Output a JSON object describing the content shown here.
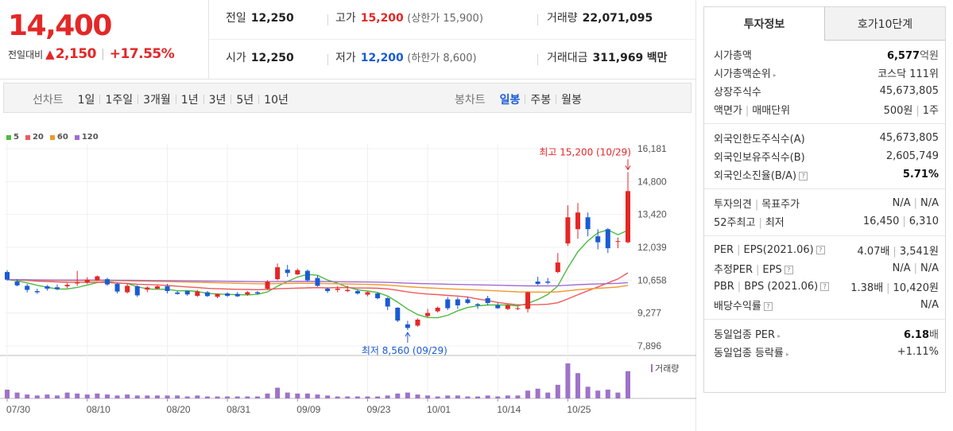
{
  "header": {
    "current_price": "14,400",
    "change_label": "전일대비",
    "change_amount": "2,150",
    "change_percent": "+17.55%",
    "prev": {
      "label": "전일",
      "value": "12,250"
    },
    "high": {
      "label": "고가",
      "value": "15,200",
      "limit": "(상한가 15,900)"
    },
    "volume": {
      "label": "거래량",
      "value": "22,071,095"
    },
    "open": {
      "label": "시가",
      "value": "12,250"
    },
    "low": {
      "label": "저가",
      "value": "12,200",
      "limit": "(하한가 8,600)"
    },
    "amount": {
      "label": "거래대금",
      "value": "311,969",
      "unit": "백만"
    }
  },
  "toolbar": {
    "line_label": "선차트",
    "periods": [
      "1일",
      "1주일",
      "3개월",
      "1년",
      "3년",
      "5년",
      "10년"
    ],
    "candle_label": "봉차트",
    "candle_types": [
      "일봉",
      "주봉",
      "월봉"
    ],
    "active_candle": "일봉"
  },
  "colors": {
    "up": "#e42727",
    "down": "#1a5bd4",
    "ma5": "#4cbb3f",
    "ma20": "#ee5a5a",
    "ma60": "#f0982c",
    "ma120": "#a26bd2"
  },
  "chart_data": {
    "type": "candlestick",
    "legend": [
      {
        "name": "5",
        "color": "#4cbb3f"
      },
      {
        "name": "20",
        "color": "#ee5a5a"
      },
      {
        "name": "60",
        "color": "#f0982c"
      },
      {
        "name": "120",
        "color": "#a26bd2"
      }
    ],
    "y_ticks": [
      "16,181",
      "14,800",
      "13,420",
      "12,039",
      "10,658",
      "9,277",
      "7,896"
    ],
    "ylim": [
      7896,
      16181
    ],
    "x_ticks": [
      {
        "label": "07/30",
        "index": 0
      },
      {
        "label": "08/10",
        "index": 8
      },
      {
        "label": "08/20",
        "index": 16
      },
      {
        "label": "08/31",
        "index": 22
      },
      {
        "label": "09/09",
        "index": 29
      },
      {
        "label": "09/23",
        "index": 36
      },
      {
        "label": "10/01",
        "index": 42
      },
      {
        "label": "10/14",
        "index": 49
      },
      {
        "label": "10/25",
        "index": 56
      }
    ],
    "max_annotation": "최고 15,200 (10/29)",
    "min_annotation": "최저 8,560 (09/29)",
    "volume_label": "거래량",
    "candles": [
      {
        "o": 11000,
        "h": 11080,
        "l": 10640,
        "c": 10680,
        "v": 9
      },
      {
        "o": 10600,
        "h": 10700,
        "l": 10400,
        "c": 10440,
        "v": 6
      },
      {
        "o": 10420,
        "h": 10500,
        "l": 10140,
        "c": 10250,
        "v": 4
      },
      {
        "o": 10200,
        "h": 10300,
        "l": 10080,
        "c": 10150,
        "v": 3
      },
      {
        "o": 10400,
        "h": 10460,
        "l": 10220,
        "c": 10300,
        "v": 4
      },
      {
        "o": 10360,
        "h": 10480,
        "l": 10240,
        "c": 10280,
        "v": 3
      },
      {
        "o": 10400,
        "h": 10540,
        "l": 10320,
        "c": 10460,
        "v": 6
      },
      {
        "o": 10520,
        "h": 11050,
        "l": 10420,
        "c": 10560,
        "v": 5
      },
      {
        "o": 10560,
        "h": 10780,
        "l": 10500,
        "c": 10680,
        "v": 4
      },
      {
        "o": 10650,
        "h": 10850,
        "l": 10620,
        "c": 10820,
        "v": 5
      },
      {
        "o": 10700,
        "h": 10760,
        "l": 10420,
        "c": 10480,
        "v": 4
      },
      {
        "o": 10500,
        "h": 10560,
        "l": 10100,
        "c": 10180,
        "v": 3
      },
      {
        "o": 10150,
        "h": 10500,
        "l": 10100,
        "c": 10420,
        "v": 4
      },
      {
        "o": 10400,
        "h": 10450,
        "l": 9950,
        "c": 10020,
        "v": 3
      },
      {
        "o": 10260,
        "h": 10400,
        "l": 10150,
        "c": 10350,
        "v": 3
      },
      {
        "o": 10300,
        "h": 10450,
        "l": 10280,
        "c": 10400,
        "v": 3
      },
      {
        "o": 10400,
        "h": 10500,
        "l": 10100,
        "c": 10200,
        "v": 3
      },
      {
        "o": 10140,
        "h": 10200,
        "l": 10050,
        "c": 10080,
        "v": 3
      },
      {
        "o": 10200,
        "h": 10220,
        "l": 10000,
        "c": 10060,
        "v": 2
      },
      {
        "o": 10000,
        "h": 10250,
        "l": 9950,
        "c": 10180,
        "v": 3
      },
      {
        "o": 10150,
        "h": 10200,
        "l": 9950,
        "c": 9990,
        "v": 2
      },
      {
        "o": 9960,
        "h": 10100,
        "l": 9900,
        "c": 10080,
        "v": 2
      },
      {
        "o": 10100,
        "h": 10150,
        "l": 9950,
        "c": 10000,
        "v": 2
      },
      {
        "o": 10080,
        "h": 10160,
        "l": 9950,
        "c": 9980,
        "v": 2
      },
      {
        "o": 10060,
        "h": 10200,
        "l": 10000,
        "c": 10150,
        "v": 2
      },
      {
        "o": 10150,
        "h": 10200,
        "l": 10060,
        "c": 10100,
        "v": 2
      },
      {
        "o": 10300,
        "h": 10660,
        "l": 10250,
        "c": 10600,
        "v": 5
      },
      {
        "o": 10700,
        "h": 11360,
        "l": 10650,
        "c": 11200,
        "v": 11
      },
      {
        "o": 11100,
        "h": 11300,
        "l": 10800,
        "c": 10960,
        "v": 6
      },
      {
        "o": 10900,
        "h": 11150,
        "l": 10880,
        "c": 11080,
        "v": 5
      },
      {
        "o": 11050,
        "h": 11110,
        "l": 10600,
        "c": 10650,
        "v": 5
      },
      {
        "o": 10750,
        "h": 10850,
        "l": 10380,
        "c": 10420,
        "v": 4
      },
      {
        "o": 10300,
        "h": 10350,
        "l": 10120,
        "c": 10200,
        "v": 3
      },
      {
        "o": 10250,
        "h": 10400,
        "l": 10150,
        "c": 10300,
        "v": 2
      },
      {
        "o": 10200,
        "h": 10420,
        "l": 10150,
        "c": 10250,
        "v": 2
      },
      {
        "o": 10200,
        "h": 10280,
        "l": 10050,
        "c": 10100,
        "v": 2
      },
      {
        "o": 10050,
        "h": 10180,
        "l": 9980,
        "c": 10150,
        "v": 2
      },
      {
        "o": 10100,
        "h": 10150,
        "l": 9850,
        "c": 9900,
        "v": 2
      },
      {
        "o": 9900,
        "h": 9950,
        "l": 9400,
        "c": 9550,
        "v": 3
      },
      {
        "o": 9500,
        "h": 9520,
        "l": 8900,
        "c": 8960,
        "v": 5
      },
      {
        "o": 8800,
        "h": 8950,
        "l": 8560,
        "c": 8650,
        "v": 6
      },
      {
        "o": 8750,
        "h": 9050,
        "l": 8700,
        "c": 9000,
        "v": 4
      },
      {
        "o": 9150,
        "h": 9450,
        "l": 9100,
        "c": 9280,
        "v": 3
      },
      {
        "o": 9350,
        "h": 9550,
        "l": 9300,
        "c": 9500,
        "v": 2
      },
      {
        "o": 9850,
        "h": 9950,
        "l": 9400,
        "c": 9480,
        "v": 3
      },
      {
        "o": 9850,
        "h": 9950,
        "l": 9450,
        "c": 9600,
        "v": 3
      },
      {
        "o": 9850,
        "h": 9950,
        "l": 9650,
        "c": 9700,
        "v": 2
      },
      {
        "o": 9650,
        "h": 9700,
        "l": 9450,
        "c": 9600,
        "v": 2
      },
      {
        "o": 9900,
        "h": 10000,
        "l": 9600,
        "c": 9700,
        "v": 3
      },
      {
        "o": 9600,
        "h": 9700,
        "l": 9450,
        "c": 9480,
        "v": 2
      },
      {
        "o": 9450,
        "h": 9650,
        "l": 9400,
        "c": 9600,
        "v": 3
      },
      {
        "o": 9450,
        "h": 9550,
        "l": 9400,
        "c": 9480,
        "v": 3
      },
      {
        "o": 9450,
        "h": 10180,
        "l": 9300,
        "c": 10150,
        "v": 8
      },
      {
        "o": 10600,
        "h": 10800,
        "l": 10450,
        "c": 10500,
        "v": 10
      },
      {
        "o": 10600,
        "h": 10750,
        "l": 10480,
        "c": 10550,
        "v": 6
      },
      {
        "o": 11000,
        "h": 11800,
        "l": 10950,
        "c": 11400,
        "v": 14
      },
      {
        "o": 12200,
        "h": 13800,
        "l": 12100,
        "c": 13300,
        "v": 36
      },
      {
        "o": 12800,
        "h": 13900,
        "l": 12400,
        "c": 13500,
        "v": 26
      },
      {
        "o": 13300,
        "h": 13500,
        "l": 12500,
        "c": 12800,
        "v": 12
      },
      {
        "o": 12500,
        "h": 12800,
        "l": 11950,
        "c": 12250,
        "v": 8
      },
      {
        "o": 12800,
        "h": 12850,
        "l": 11800,
        "c": 12000,
        "v": 9
      },
      {
        "o": 12300,
        "h": 12450,
        "l": 12000,
        "c": 12300,
        "v": 6
      },
      {
        "o": 12250,
        "h": 15200,
        "l": 12200,
        "c": 14400,
        "v": 28
      }
    ]
  },
  "panel": {
    "tabs": [
      "투자정보",
      "호가10단계"
    ],
    "market_cap": {
      "label": "시가총액",
      "value": "6,577",
      "unit": "억원"
    },
    "market_cap_rank": {
      "label": "시가총액순위",
      "value": "코스닥 111위"
    },
    "shares": {
      "label": "상장주식수",
      "value": "45,673,805"
    },
    "par": {
      "label": "액면가",
      "label2": "매매단위",
      "value": "500원",
      "value2": "1주"
    },
    "foreign_limit": {
      "label": "외국인한도주식수(A)",
      "value": "45,673,805"
    },
    "foreign_hold": {
      "label": "외국인보유주식수(B)",
      "value": "2,605,749"
    },
    "foreign_ratio": {
      "label": "외국인소진율(B/A)",
      "value": "5.71%"
    },
    "opinion": {
      "label": "투자의견",
      "label2": "목표주가",
      "value": "N/A",
      "value2": "N/A"
    },
    "wk52": {
      "label": "52주최고",
      "label2": "최저",
      "value": "16,450",
      "value2": "6,310"
    },
    "per": {
      "label": "PER",
      "label2": "EPS(2021.06)",
      "value": "4.07배",
      "value2": "3,541원"
    },
    "est_per": {
      "label": "추정PER",
      "label2": "EPS",
      "value": "N/A",
      "value2": "N/A"
    },
    "pbr": {
      "label": "PBR",
      "label2": "BPS (2021.06)",
      "value": "1.38배",
      "value2": "10,420원"
    },
    "dividend": {
      "label": "배당수익률",
      "value": "N/A"
    },
    "industry_per": {
      "label": "동일업종 PER",
      "value": "6.18",
      "unit": "배"
    },
    "industry_chg": {
      "label": "동일업종 등락률",
      "value": "+1.11%"
    },
    "help_mark": "?"
  }
}
